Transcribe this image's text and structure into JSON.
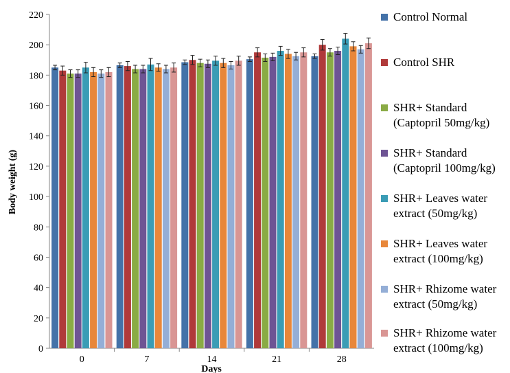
{
  "chart_data": {
    "type": "bar",
    "xlabel": "Days",
    "ylabel": "Body weight (g)",
    "categories": [
      "0",
      "7",
      "14",
      "21",
      "28"
    ],
    "ylim": [
      0,
      220
    ],
    "yticks": [
      0,
      20,
      40,
      60,
      80,
      100,
      120,
      140,
      160,
      180,
      200,
      220
    ],
    "grid": false,
    "legend_position": "right",
    "error_bars": true,
    "series": [
      {
        "name": "Control Normal",
        "color": "#4472a8",
        "values": [
          185,
          186.5,
          188.5,
          190.5,
          192.5
        ],
        "errors": [
          1.5,
          1.5,
          1.5,
          1.5,
          1.5
        ]
      },
      {
        "name": "Control SHR",
        "color": "#b03a3a",
        "values": [
          183,
          186,
          190,
          195,
          200
        ],
        "errors": [
          3,
          3,
          3,
          3,
          3.5
        ]
      },
      {
        "name": "SHR+ Standard (Captopril 50mg/kg)",
        "color": "#8aab45",
        "values": [
          181,
          184,
          188,
          191.5,
          195
        ],
        "errors": [
          2.5,
          2.5,
          2.5,
          2.5,
          2.5
        ]
      },
      {
        "name": "SHR+ Standard (Captopril 100mg/kg)",
        "color": "#6e5494",
        "values": [
          181,
          184,
          187.5,
          192,
          196
        ],
        "errors": [
          2.5,
          2.5,
          2.5,
          2.5,
          2.5
        ]
      },
      {
        "name": "SHR+ Leaves water extract (50mg/kg)",
        "color": "#3a9cb5",
        "values": [
          185,
          187,
          189.5,
          196,
          204
        ],
        "errors": [
          3.5,
          4,
          3,
          3,
          3.5
        ]
      },
      {
        "name": "SHR+ Leaves water extract (100mg/kg)",
        "color": "#e8873a",
        "values": [
          182,
          185,
          188,
          194,
          199
        ],
        "errors": [
          3,
          2.5,
          3,
          3,
          3
        ]
      },
      {
        "name": "SHR+ Rhizome water extract (50mg/kg)",
        "color": "#94aed6",
        "values": [
          181,
          184,
          186.5,
          192.5,
          197
        ],
        "errors": [
          2.5,
          2.5,
          2.5,
          2.5,
          2.5
        ]
      },
      {
        "name": "SHR+ Rhizome water extract (100mg/kg)",
        "color": "#d99694",
        "values": [
          182,
          185,
          189.5,
          195,
          201
        ],
        "errors": [
          3,
          3,
          3,
          3,
          3.5
        ]
      }
    ]
  }
}
